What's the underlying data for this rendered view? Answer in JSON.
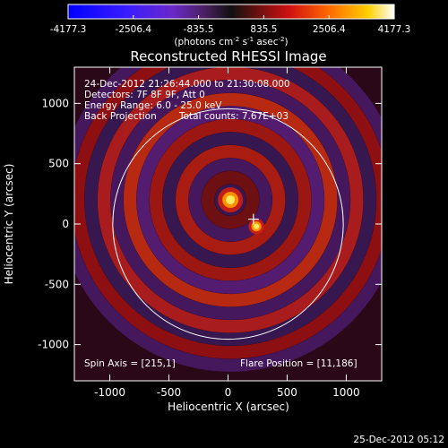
{
  "chart_data": {
    "type": "heatmap",
    "title": "Reconstructed RHESSI Image",
    "xlabel": "Heliocentric X (arcsec)",
    "ylabel": "Heliocentric Y (arcsec)",
    "xlim": [
      -1300,
      1300
    ],
    "ylim": [
      -1300,
      1300
    ],
    "x_ticks": [
      "-1000",
      "-500",
      "0",
      "500",
      "1000"
    ],
    "y_ticks": [
      "-1000",
      "-500",
      "0",
      "500",
      "1000"
    ],
    "x_tick_values": [
      -1000,
      -500,
      0,
      500,
      1000
    ],
    "y_tick_values": [
      -1000,
      -500,
      0,
      500,
      1000
    ],
    "colorbar": {
      "ticks": [
        "-4177.3",
        "-2506.4",
        "-835.5",
        "835.5",
        "2506.4",
        "4177.3"
      ],
      "tick_values": [
        -4177.3,
        -2506.4,
        -835.5,
        835.5,
        2506.4,
        4177.3
      ],
      "range": [
        -4177.3,
        4177.3
      ],
      "unit_label": "(photons cm",
      "unit_exp1": "-2",
      "unit_mid": " s",
      "unit_exp2": "-1",
      "unit_end": " asec",
      "unit_exp3": "-2",
      "unit_close": ")"
    },
    "annotations": {
      "time_range": "24-Dec-2012 21:26:44.000 to 21:30:08.000",
      "detectors": "Detectors: 7F 8F 9F, Att 0",
      "energy": "Energy Range: 6.0 - 25.0 keV",
      "method": "Back Projection",
      "counts": "Total counts: 7.67E+03",
      "spin_axis": "Spin Axis = [215,1]",
      "flare_position": "Flare Position = [11,186]"
    },
    "solar_disk_radius_arcsec": 975,
    "sources": [
      {
        "x": 20,
        "y": 200,
        "intensity": 4177.3
      },
      {
        "x": 240,
        "y": -20,
        "intensity": 2600
      }
    ],
    "flare_marker": {
      "x": 215,
      "y": 40
    }
  },
  "timestamp": "25-Dec-2012 05:12",
  "colors": {
    "background": "#000000",
    "foreground": "#ffffff"
  }
}
